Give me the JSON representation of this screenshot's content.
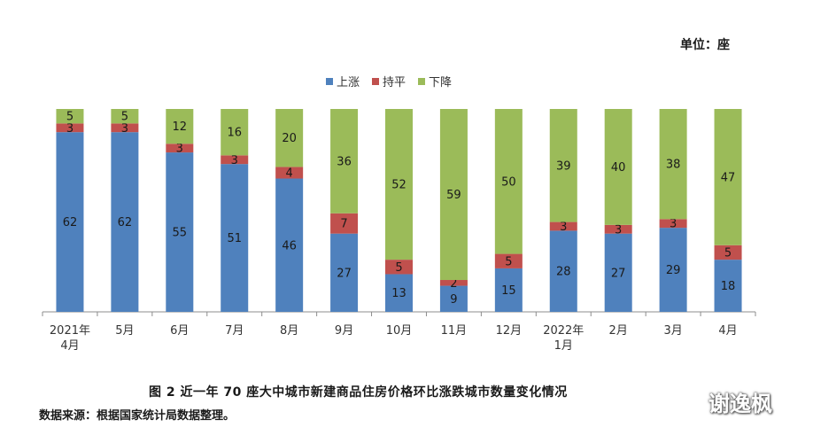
{
  "unit_label": "单位：座",
  "caption": "图 2    近一年 70 座大中城市新建商品住房价格环比涨跌城市数量变化情况",
  "source": "数据来源：根据国家统计局数据整理。",
  "watermark": "谢逸枫",
  "chart_data": {
    "type": "bar",
    "stacked": true,
    "categories": [
      [
        "2021年",
        "4月"
      ],
      [
        "5月"
      ],
      [
        "6月"
      ],
      [
        "7月"
      ],
      [
        "8月"
      ],
      [
        "9月"
      ],
      [
        "10月"
      ],
      [
        "11月"
      ],
      [
        "12月"
      ],
      [
        "2022年",
        "1月"
      ],
      [
        "2月"
      ],
      [
        "3月"
      ],
      [
        "4月"
      ]
    ],
    "series": [
      {
        "name": "上涨",
        "color": "#4F81BD",
        "values": [
          62,
          62,
          55,
          51,
          46,
          27,
          13,
          9,
          15,
          28,
          27,
          29,
          18
        ]
      },
      {
        "name": "持平",
        "color": "#C0504D",
        "values": [
          3,
          3,
          3,
          3,
          4,
          7,
          5,
          2,
          5,
          3,
          3,
          3,
          5
        ]
      },
      {
        "name": "下降",
        "color": "#9BBB59",
        "values": [
          5,
          5,
          12,
          16,
          20,
          36,
          52,
          59,
          50,
          39,
          40,
          38,
          47
        ]
      }
    ],
    "ylim": [
      0,
      70
    ],
    "grid": false,
    "legend_position": "top-center"
  }
}
